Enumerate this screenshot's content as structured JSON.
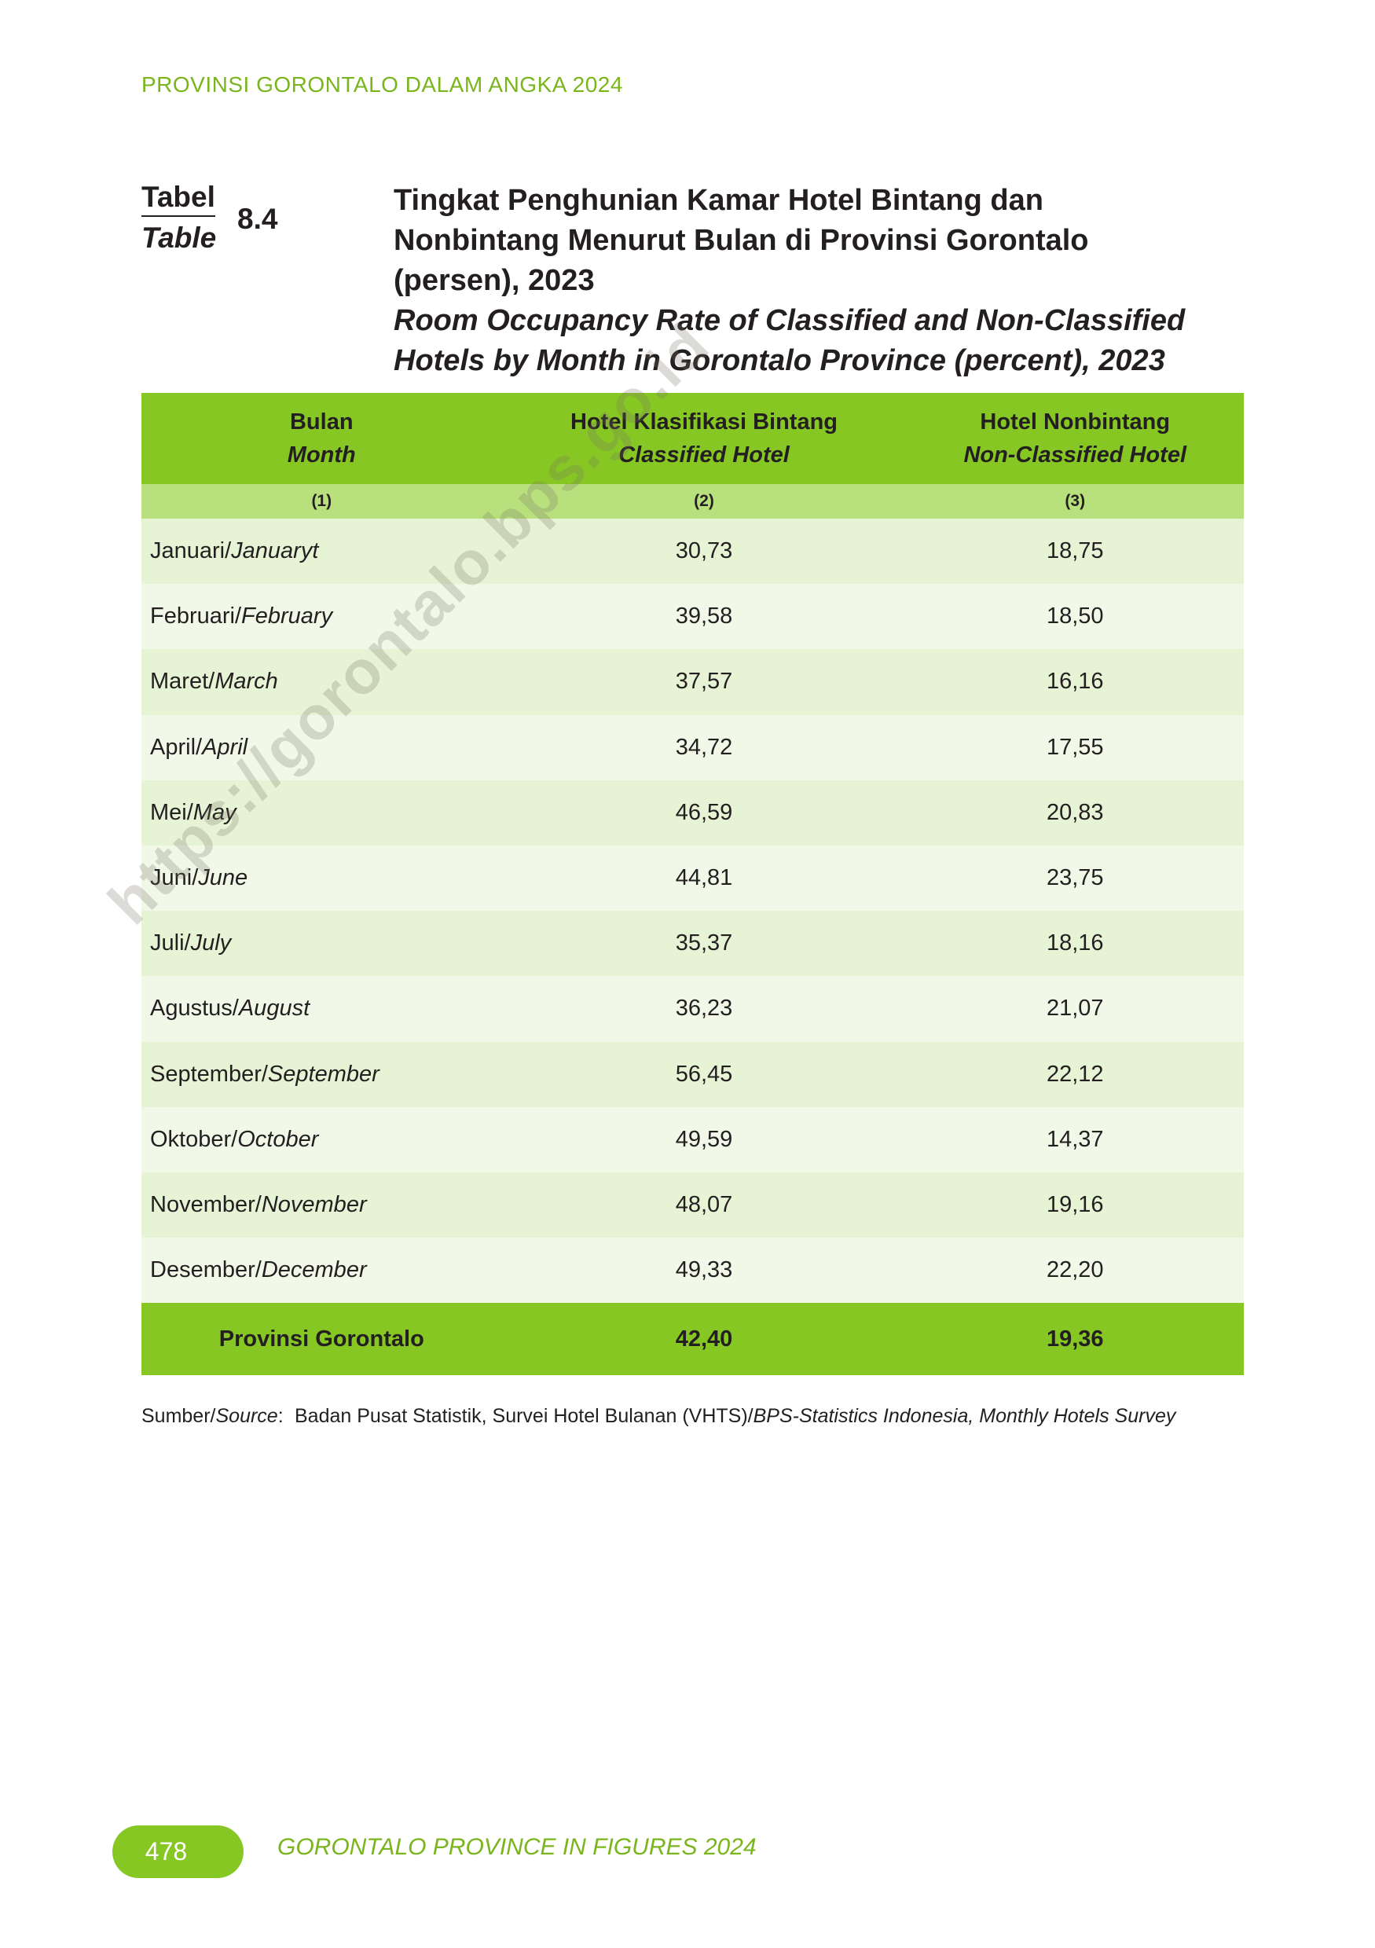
{
  "header": {
    "running_title": "PROVINSI GORONTALO DALAM ANGKA 2024"
  },
  "table_label": {
    "id": "Tabel",
    "en": "Table",
    "number": "8.4"
  },
  "title": {
    "id_lines": [
      "Tingkat Penghunian Kamar Hotel Bintang dan",
      "Nonbintang Menurut Bulan di Provinsi Gorontalo",
      "(persen), 2023"
    ],
    "en_lines": [
      "Room Occupancy Rate of Classified and Non-Classified",
      "Hotels by Month in Gorontalo Province (percent), 2023"
    ]
  },
  "table": {
    "columns": [
      {
        "id": "Bulan",
        "en": "Month"
      },
      {
        "id": "Hotel Klasifikasi Bintang",
        "en": "Classified Hotel"
      },
      {
        "id": "Hotel Nonbintang",
        "en": "Non-Classified Hotel"
      }
    ],
    "column_numbers": [
      "(1)",
      "(2)",
      "(3)"
    ],
    "rows": [
      {
        "id": "Januari/",
        "en": "Januaryt",
        "values": [
          "30,73",
          "18,75"
        ]
      },
      {
        "id": "Februari/",
        "en": "February",
        "values": [
          "39,58",
          "18,50"
        ]
      },
      {
        "id": "Maret/",
        "en": "March",
        "values": [
          "37,57",
          "16,16"
        ]
      },
      {
        "id": "April/",
        "en": "April",
        "values": [
          "34,72",
          "17,55"
        ]
      },
      {
        "id": "Mei/",
        "en": "May",
        "values": [
          "46,59",
          "20,83"
        ]
      },
      {
        "id": "Juni/",
        "en": "June",
        "values": [
          "44,81",
          "23,75"
        ]
      },
      {
        "id": "Juli/",
        "en": "July",
        "values": [
          "35,37",
          "18,16"
        ]
      },
      {
        "id": "Agustus/",
        "en": "August",
        "values": [
          "36,23",
          "21,07"
        ]
      },
      {
        "id": "September/",
        "en": "September",
        "values": [
          "56,45",
          "22,12"
        ]
      },
      {
        "id": "Oktober/",
        "en": "October",
        "values": [
          "49,59",
          "14,37"
        ]
      },
      {
        "id": "November/",
        "en": "November",
        "values": [
          "48,07",
          "19,16"
        ]
      },
      {
        "id": "Desember/",
        "en": "December",
        "values": [
          "49,33",
          "22,20"
        ]
      }
    ],
    "total": {
      "label": "Provinsi Gorontalo",
      "values": [
        "42,40",
        "19,36"
      ]
    }
  },
  "source": {
    "label_id": "Sumber/",
    "label_en": "Source",
    "colon": ":",
    "text_id": "Badan Pusat Statistik, Survei Hotel Bulanan (VHTS)/",
    "text_en": "BPS-Statistics Indonesia, Monthly Hotels Survey"
  },
  "footer": {
    "page_number": "478",
    "text": "GORONTALO PROVINCE IN FIGURES 2024"
  },
  "watermark": "https://gorontalo.bps.go.id"
}
